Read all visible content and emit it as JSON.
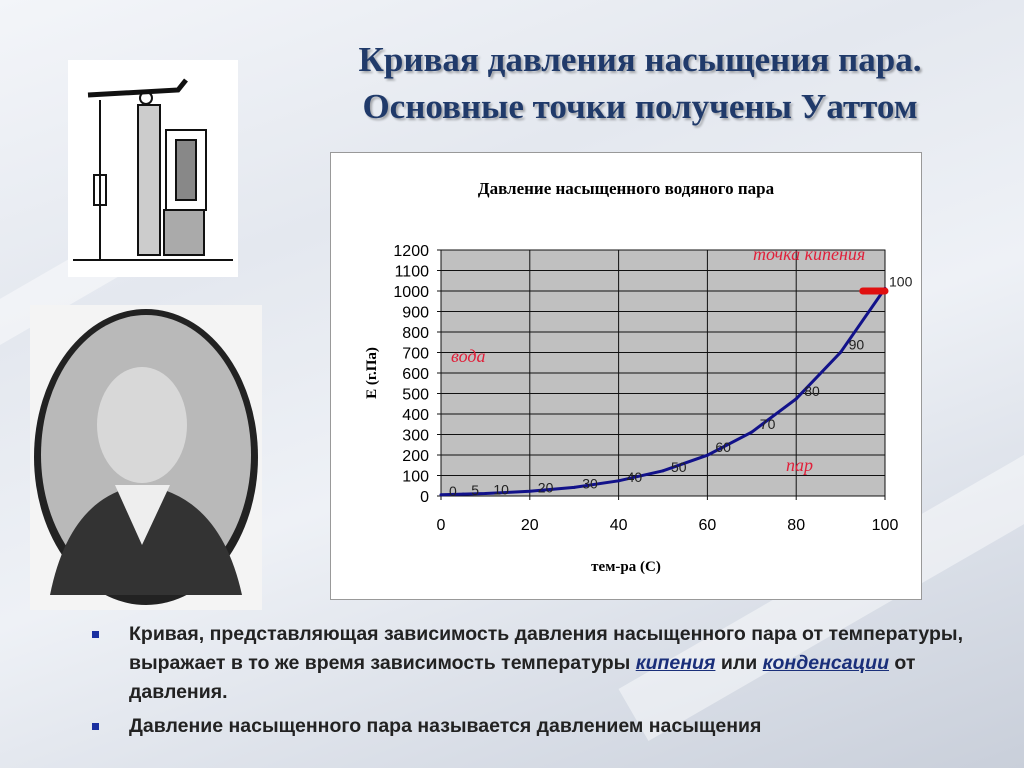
{
  "title_line1": "Кривая давления насыщения пара.",
  "title_line2": "Основные точки получены Уаттом",
  "chart_data": {
    "type": "line",
    "title": "Давление насыщенного водяного пара",
    "xlabel": "тем-ра (С)",
    "ylabel": "Е (г.Па)",
    "xlim": [
      0,
      100
    ],
    "ylim": [
      0,
      1200
    ],
    "xticks": [
      0,
      20,
      40,
      60,
      80,
      100
    ],
    "yticks": [
      0,
      100,
      200,
      300,
      400,
      500,
      600,
      700,
      800,
      900,
      1000,
      1100,
      1200
    ],
    "grid": true,
    "x": [
      0,
      5,
      10,
      20,
      30,
      40,
      50,
      60,
      70,
      80,
      90,
      100
    ],
    "y": [
      6,
      9,
      12,
      23,
      42,
      74,
      123,
      199,
      312,
      474,
      701,
      1013
    ],
    "point_labels": [
      "0",
      "5",
      "10",
      "20",
      "30",
      "40",
      "50",
      "60",
      "70",
      "80",
      "90",
      "100"
    ],
    "annotations": {
      "boiling": "точка кипения",
      "water": "вода",
      "steam": "пар"
    },
    "colors": {
      "line": "#12128a",
      "plot_bg": "#c0c0c0",
      "annotation": "#e0203a"
    }
  },
  "bullets": {
    "b1_part1": "Кривая, представляющая зависимость давления насыщенного пара от температуры, выражает в то же время зависимость температуры ",
    "b1_link1": "кипения",
    "b1_part2": " или ",
    "b1_link2": "конденсации",
    "b1_part3": " от давления.",
    "b2": "Давление насыщенного пара называется давлением насыщения"
  }
}
